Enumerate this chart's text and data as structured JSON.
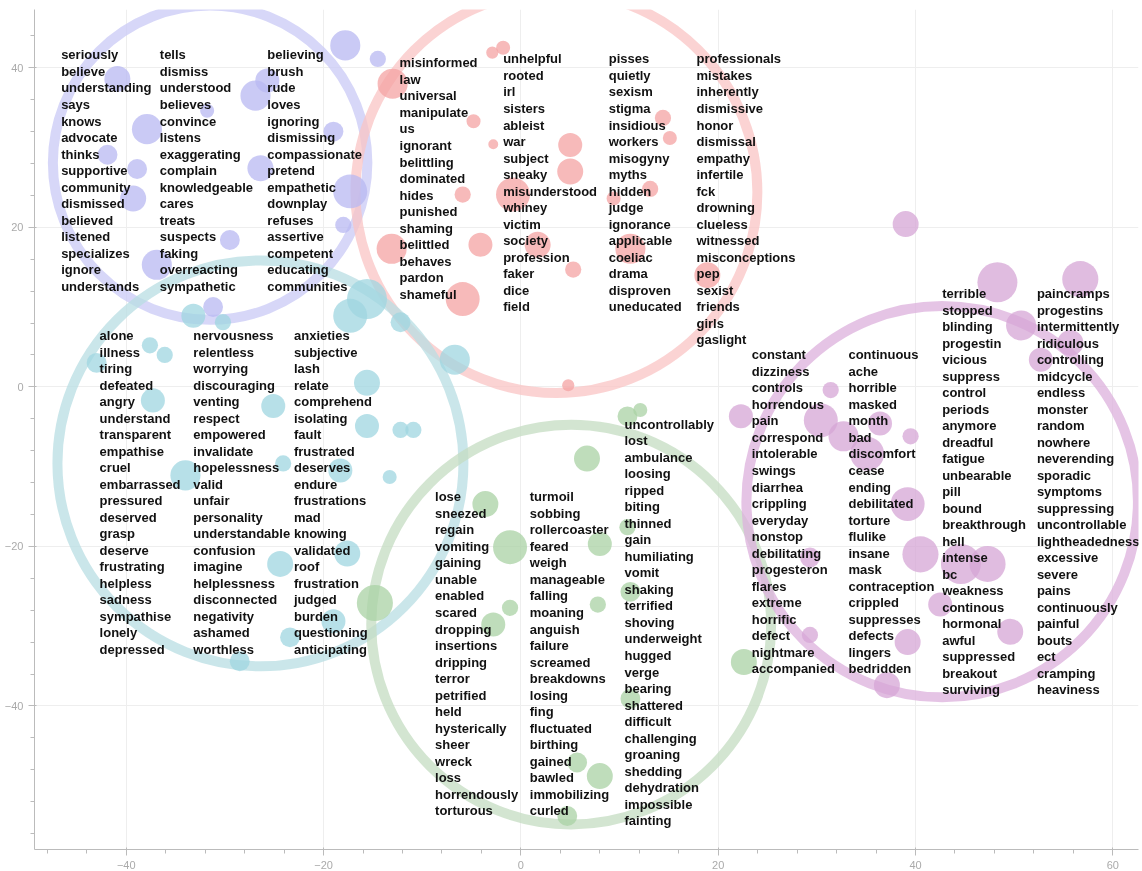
{
  "chart_data": {
    "type": "bubble",
    "xlim": [
      -49.3,
      62.6
    ],
    "ylim": [
      -58,
      47.3
    ],
    "xticks": [
      {
        "value": -48,
        "label": null
      },
      {
        "value": -44,
        "label": null
      },
      -40,
      {
        "value": -36,
        "label": null
      },
      {
        "value": -32,
        "label": null
      },
      {
        "value": -28,
        "label": null
      },
      {
        "value": -24,
        "label": null
      },
      -20,
      {
        "value": -16,
        "label": null
      },
      {
        "value": -12,
        "label": null
      },
      {
        "value": -8,
        "label": null
      },
      {
        "value": -4,
        "label": null
      },
      0,
      {
        "value": 4,
        "label": null
      },
      {
        "value": 8,
        "label": null
      },
      {
        "value": 12,
        "label": null
      },
      {
        "value": 16,
        "label": null
      },
      20,
      {
        "value": 24,
        "label": null
      },
      {
        "value": 28,
        "label": null
      },
      {
        "value": 32,
        "label": null
      },
      {
        "value": 36,
        "label": null
      },
      40,
      {
        "value": 44,
        "label": null
      },
      {
        "value": 48,
        "label": null
      },
      {
        "value": 52,
        "label": null
      },
      {
        "value": 56,
        "label": null
      },
      60
    ],
    "yticks": [
      {
        "value": 44,
        "label": null
      },
      40,
      {
        "value": 36,
        "label": null
      },
      {
        "value": 32,
        "label": null
      },
      {
        "value": 28,
        "label": null
      },
      {
        "value": 24,
        "label": null
      },
      20,
      {
        "value": 16,
        "label": null
      },
      {
        "value": 12,
        "label": null
      },
      {
        "value": 8,
        "label": null
      },
      {
        "value": 4,
        "label": null
      },
      0,
      {
        "value": -4,
        "label": null
      },
      {
        "value": -8,
        "label": null
      },
      {
        "value": -12,
        "label": null
      },
      {
        "value": -16,
        "label": null
      },
      -20,
      {
        "value": -24,
        "label": null
      },
      {
        "value": -28,
        "label": null
      },
      {
        "value": -32,
        "label": null
      },
      {
        "value": -36,
        "label": null
      },
      -40,
      {
        "value": -44,
        "label": null
      },
      {
        "value": -48,
        "label": null
      },
      {
        "value": -52,
        "label": null
      },
      {
        "value": -56,
        "label": null
      }
    ],
    "grid": true,
    "series": [
      {
        "color": "#c9c9f5",
        "line_style": "solid",
        "x": [
          -31.5
        ],
        "values": [
          28.1
        ],
        "sizes": [
          0.6
        ]
      },
      {
        "color": "#f9c4c4",
        "line_style": "solid",
        "x": [
          3.6
        ],
        "values": [
          24.4
        ],
        "sizes": [
          0.98
        ]
      },
      {
        "color": "#b8dde3",
        "line_style": "solid",
        "x": [
          -26.4
        ],
        "values": [
          -9.6
        ],
        "sizes": [
          1
        ]
      },
      {
        "color": "#c4dcc1",
        "line_style": "solid",
        "x": [
          5.1
        ],
        "values": [
          -29.8
        ],
        "sizes": [
          0.97
        ]
      },
      {
        "color": "#dcb0dc",
        "line_style": "solid",
        "x": [
          42.7
        ],
        "values": [
          -14.4
        ],
        "sizes": [
          0.93
        ]
      },
      {
        "color": "#b8b8f2",
        "x": [
          -17.8,
          -14.5,
          -40.9,
          -26.9,
          -25.7,
          -37.9,
          -41.9,
          -38.9,
          -39.3,
          -26.4,
          -17.3,
          -18.0,
          -19.0,
          -29.5,
          -36.9,
          -31.8,
          -31.2
        ],
        "values": [
          42.8,
          41.1,
          38.6,
          36.5,
          38.4,
          32.3,
          29.1,
          27.3,
          23.6,
          27.4,
          24.5,
          20.3,
          32.0,
          18.4,
          15.3,
          34.6,
          10.0
        ],
        "sizes": [
          0.0055,
          0.0016,
          0.0041,
          0.0055,
          0.0035,
          0.0055,
          0.0024,
          0.0024,
          0.0041,
          0.0041,
          0.007,
          0.0016,
          0.0024,
          0.0024,
          0.0055,
          0.0012,
          0.0024
        ]
      },
      {
        "color": "#f4a3a3",
        "x": [
          -1.8,
          -2.9,
          -13.0,
          -4.8,
          -5.9,
          -0.8,
          5.0,
          5.0,
          -13.1,
          -5.9,
          -4.1,
          1.7,
          5.3,
          11.1,
          14.4,
          15.1,
          18.9,
          13.1,
          9.4,
          -2.8,
          4.8
        ],
        "values": [
          42.5,
          41.9,
          38.0,
          33.3,
          24.1,
          24.1,
          30.3,
          27.0,
          17.3,
          11.0,
          17.8,
          17.8,
          14.7,
          17.3,
          33.7,
          31.2,
          14.0,
          24.8,
          23.6,
          30.4,
          0.2
        ],
        "sizes": [
          0.0012,
          0.0009,
          0.0055,
          0.0012,
          0.0016,
          0.007,
          0.0035,
          0.0041,
          0.0055,
          0.007,
          0.0035,
          0.0041,
          0.0016,
          0.0055,
          0.0016,
          0.0012,
          0.0041,
          0.0016,
          0.0012,
          0.0006,
          0.0009
        ]
      },
      {
        "color": "#9fd6e0",
        "x": [
          -15.6,
          -17.3,
          -12.2,
          -33.2,
          -30.2,
          -43.0,
          -37.6,
          -36.1,
          -15.6,
          -10.9,
          -12.2,
          -15.6,
          -25.1,
          -34.0,
          -13.3,
          -18.3,
          -24.1,
          -24.4,
          -17.6,
          -19.0,
          -23.4,
          -28.5,
          -37.3,
          -6.7
        ],
        "values": [
          11.0,
          8.9,
          8.1,
          8.9,
          8.1,
          3.0,
          5.2,
          4.0,
          0.5,
          -5.4,
          -5.4,
          -4.9,
          -2.4,
          -11.1,
          -11.3,
          -10.5,
          -9.6,
          -22.2,
          -20.9,
          -29.4,
          -31.4,
          -34.4,
          -1.7,
          3.4
        ],
        "sizes": [
          0.0097,
          0.007,
          0.0024,
          0.0035,
          0.0016,
          0.0024,
          0.0016,
          0.0016,
          0.0041,
          0.0016,
          0.0016,
          0.0035,
          0.0035,
          0.0055,
          0.0012,
          0.0035,
          0.0016,
          0.0041,
          0.0041,
          0.0035,
          0.0024,
          0.0024,
          0.0035,
          0.0055
        ]
      },
      {
        "color": "#a9d1a4",
        "x": [
          -1.1,
          6.7,
          -3.6,
          8.0,
          7.8,
          -2.8,
          -1.1,
          10.8,
          11.1,
          11.1,
          22.6,
          10.8,
          12.1,
          4.7,
          8.0,
          5.7,
          -14.8
        ],
        "values": [
          -20.1,
          -9.0,
          -14.7,
          -19.7,
          -27.3,
          -29.8,
          -27.7,
          -17.6,
          -25.7,
          -39.1,
          -34.5,
          -3.7,
          -2.9,
          -53.8,
          -48.8,
          -47.1,
          -27.1
        ],
        "sizes": [
          0.007,
          0.0041,
          0.0041,
          0.0035,
          0.0016,
          0.0035,
          0.0016,
          0.0016,
          0.0024,
          0.0024,
          0.0041,
          0.0024,
          0.0012,
          0.0024,
          0.0041,
          0.0024,
          0.0079
        ]
      },
      {
        "color": "#d6a6d6",
        "x": [
          48.3,
          56.7,
          50.7,
          52.7,
          55.7,
          31.4,
          22.3,
          30.4,
          32.7,
          36.4,
          39.5,
          35.1,
          39.2,
          40.5,
          44.6,
          47.3,
          29.3,
          42.5,
          49.6,
          39.2,
          37.1,
          29.3,
          39.0
        ],
        "values": [
          13.1,
          13.5,
          7.7,
          3.4,
          5.5,
          -0.4,
          -3.7,
          -4.2,
          -6.2,
          -4.6,
          -6.2,
          -8.4,
          -14.7,
          -21.0,
          -22.2,
          -22.2,
          -21.4,
          -27.3,
          -30.7,
          -32.0,
          -37.4,
          -31.1,
          20.4
        ],
        "sizes": [
          0.0097,
          0.0079,
          0.0055,
          0.0035,
          0.0041,
          0.0016,
          0.0035,
          0.007,
          0.0055,
          0.0035,
          0.0016,
          0.007,
          0.007,
          0.0079,
          0.0097,
          0.0079,
          0.0024,
          0.0035,
          0.0041,
          0.0041,
          0.0041,
          0.0016,
          0.0041
        ]
      }
    ],
    "annotations": [
      "seriously",
      "believe",
      "understanding",
      "says",
      "knows",
      "advocate",
      "thinks",
      "supportive",
      "community",
      "dismissed",
      "believed",
      "listened",
      "specializes",
      "ignore",
      "understands",
      "tells",
      "dismiss",
      "understood",
      "believes",
      "convince",
      "listens",
      "exaggerating",
      "complain",
      "knowledgeable",
      "cares",
      "treats",
      "suspects",
      "faking",
      "overreacting",
      "sympathetic",
      "believing",
      "brush",
      "rude",
      "loves",
      "ignoring",
      "dismissing",
      "compassionate",
      "pretend",
      "empathetic",
      "downplay",
      "refuses",
      "assertive",
      "competent",
      "educating",
      "communities",
      "misinformed",
      "law",
      "universal",
      "manipulate",
      "us",
      "ignorant",
      "belittling",
      "dominated",
      "hides",
      "punished",
      "shaming",
      "belittled",
      "behaves",
      "pardon",
      "shameful",
      "unhelpful",
      "rooted",
      "irl",
      "sisters",
      "ableist",
      "war",
      "subject",
      "sneaky",
      "misunderstood",
      "whiney",
      "victim",
      "society",
      "profession",
      "faker",
      "dice",
      "field",
      "pisses",
      "quietly",
      "sexism",
      "stigma",
      "insidious",
      "workers",
      "misogyny",
      "myths",
      "hidden",
      "judge",
      "ignorance",
      "applicable",
      "coeliac",
      "drama",
      "disproven",
      "uneducated",
      "professionals",
      "mistakes",
      "inherently",
      "dismissive",
      "honor",
      "dismissal",
      "empathy",
      "infertile",
      "fck",
      "drowning",
      "clueless",
      "witnessed",
      "misconceptions",
      "pep",
      "sexist",
      "friends",
      "girls",
      "gaslight",
      "alone",
      "illness",
      "tiring",
      "defeated",
      "angry",
      "understand",
      "transparent",
      "empathise",
      "cruel",
      "embarrassed",
      "pressured",
      "deserved",
      "grasp",
      "deserve",
      "frustrating",
      "helpless",
      "sadness",
      "sympathise",
      "lonely",
      "depressed",
      "nervousness",
      "relentless",
      "worrying",
      "discouraging",
      "venting",
      "respect",
      "empowered",
      "invalidate",
      "hopelessness",
      "valid",
      "unfair",
      "personality",
      "understandable",
      "confusion",
      "imagine",
      "helplessness",
      "disconnected",
      "negativity",
      "ashamed",
      "worthless",
      "anxieties",
      "subjective",
      "lash",
      "relate",
      "comprehend",
      "isolating",
      "fault",
      "frustrated",
      "deserves",
      "endure",
      "frustrations",
      "mad",
      "knowing",
      "validated",
      "roof",
      "frustration",
      "judged",
      "burden",
      "questioning",
      "anticipating",
      "lose",
      "sneezed",
      "regain",
      "vomiting",
      "gaining",
      "unable",
      "enabled",
      "scared",
      "dropping",
      "insertions",
      "dripping",
      "terror",
      "petrified",
      "held",
      "hysterically",
      "sheer",
      "wreck",
      "loss",
      "horrendously",
      "torturous",
      "turmoil",
      "sobbing",
      "rollercoaster",
      "feared",
      "weigh",
      "manageable",
      "falling",
      "moaning",
      "anguish",
      "failure",
      "screamed",
      "breakdowns",
      "losing",
      "fing",
      "fluctuated",
      "birthing",
      "gained",
      "bawled",
      "immobilizing",
      "curled",
      "uncontrollably",
      "lost",
      "ambulance",
      "loosing",
      "ripped",
      "biting",
      "thinned",
      "gain",
      "humiliating",
      "vomit",
      "shaking",
      "terrified",
      "shoving",
      "underweight",
      "hugged",
      "verge",
      "bearing",
      "shattered",
      "difficult",
      "challenging",
      "groaning",
      "shedding",
      "dehydration",
      "impossible",
      "fainting",
      "constant",
      "dizziness",
      "controls",
      "horrendous",
      "pain",
      "correspond",
      "intolerable",
      "swings",
      "diarrhea",
      "crippling",
      "everyday",
      "nonstop",
      "debilitating",
      "progesteron",
      "flares",
      "extreme",
      "horrific",
      "defect",
      "nightmare",
      "accompanied",
      "continuous",
      "ache",
      "horrible",
      "masked",
      "month",
      "bad",
      "discomfort",
      "cease",
      "ending",
      "debilitated",
      "torture",
      "flulike",
      "insane",
      "mask",
      "contraception",
      "crippled",
      "suppresses",
      "defects",
      "lingers",
      "bedridden",
      "terrible",
      "stopped",
      "blinding",
      "progestin",
      "vicious",
      "suppress",
      "control",
      "periods",
      "anymore",
      "dreadful",
      "fatigue",
      "unbearable",
      "pill",
      "bound",
      "breakthrough",
      "hell",
      "intense",
      "bc",
      "weakness",
      "continous",
      "hormonal",
      "awful",
      "suppressed",
      "breakout",
      "surviving",
      "paincramps",
      "progestins",
      "intermittently",
      "ridiculous",
      "controlling",
      "midcycle",
      "endless",
      "monster",
      "random",
      "nowhere",
      "neverending",
      "sporadic",
      "symptoms",
      "suppressing",
      "uncontrollable",
      "lightheadedness",
      "excessive",
      "severe",
      "pains",
      "continuously",
      "painful",
      "bouts",
      "ect",
      "cramping",
      "heaviness"
    ]
  }
}
